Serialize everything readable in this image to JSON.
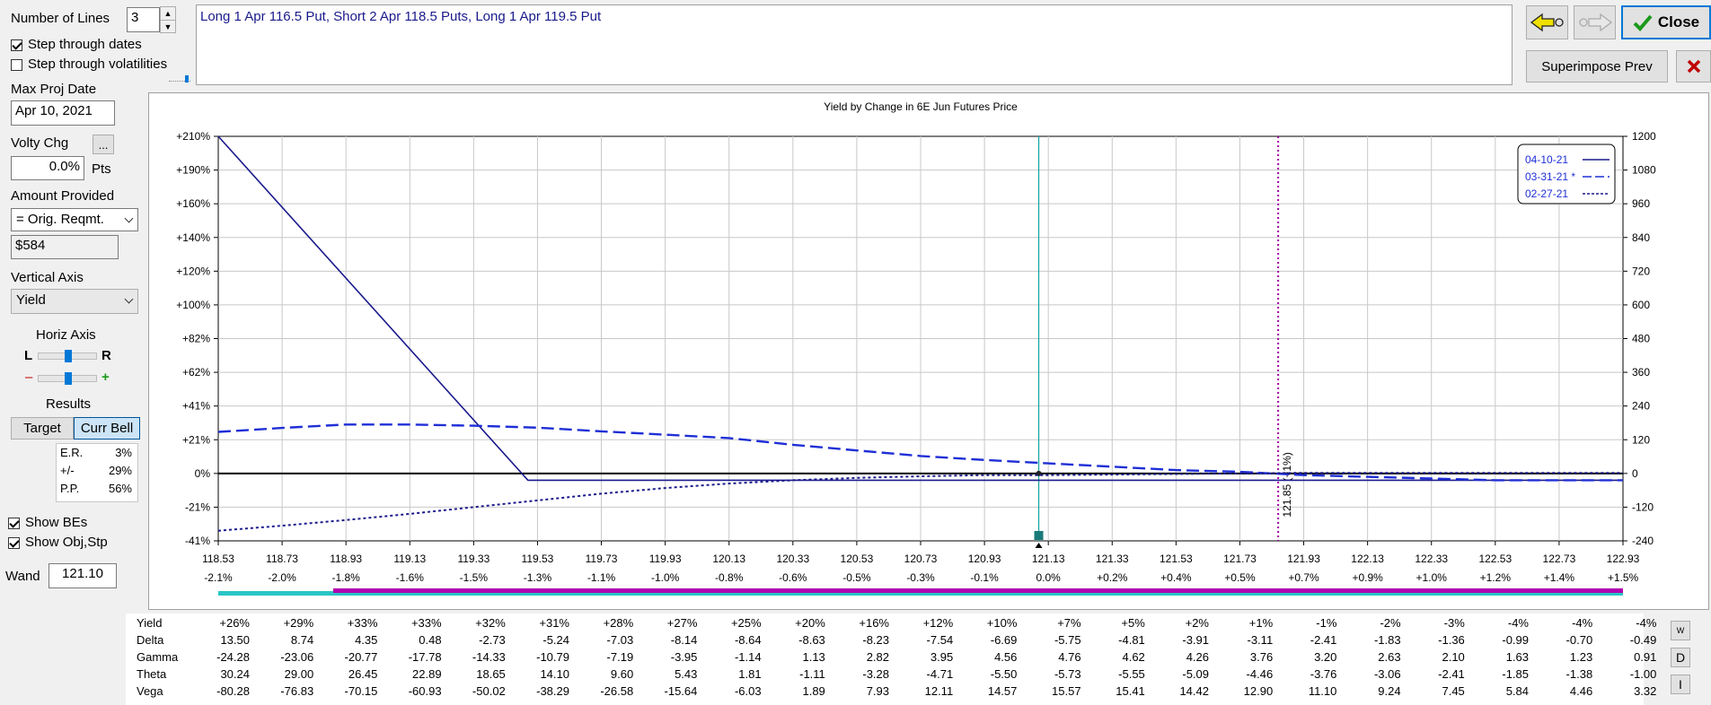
{
  "controls": {
    "number_of_lines_label": "Number of Lines",
    "number_of_lines_value": "3",
    "step_dates_label": "Step through dates",
    "step_dates_checked": true,
    "step_vols_label": "Step through volatilities",
    "step_vols_checked": false,
    "max_proj_date_label": "Max Proj Date",
    "max_proj_date_value": "Apr 10, 2021",
    "volty_chg_label": "Volty Chg",
    "volty_chg_btn": "...",
    "volty_chg_value": "0.0%",
    "volty_chg_unit": "Pts",
    "amount_provided_label": "Amount Provided",
    "amount_provided_option": "= Orig. Reqmt.",
    "amount_provided_value": "$584",
    "vertical_axis_label": "Vertical Axis",
    "vertical_axis_option": "Yield",
    "horiz_axis_label": "Horiz Axis",
    "horiz_l": "L",
    "horiz_r": "R",
    "horiz_minus": "–",
    "horiz_plus": "+",
    "results_label": "Results",
    "target_btn": "Target",
    "curr_bell_btn": "Curr Bell",
    "er_label": "E.R.",
    "er_value": "3%",
    "pm_label": "+/-",
    "pm_value": "29%",
    "pp_label": "P.P.",
    "pp_value": "56%",
    "show_bes_label": "Show BEs",
    "show_bes_checked": true,
    "show_obj_label": "Show Obj,Stp",
    "show_obj_checked": true,
    "wand_label": "Wand",
    "wand_value": "121.10"
  },
  "description": "Long 1 Apr 116.5 Put, Short 2 Apr 118.5 Puts, Long 1 Apr 119.5 Put",
  "toolbar": {
    "close_label": "Close",
    "superimpose_label": "Superimpose Prev"
  },
  "chart_data": {
    "type": "line",
    "title": "Yield by Change in 6E Jun Futures Price",
    "x_ticks": [
      "118.53",
      "118.73",
      "118.93",
      "119.13",
      "119.33",
      "119.53",
      "119.73",
      "119.93",
      "120.13",
      "120.33",
      "120.53",
      "120.73",
      "120.93",
      "121.13",
      "121.33",
      "121.53",
      "121.73",
      "121.93",
      "122.13",
      "122.33",
      "122.53",
      "122.73",
      "122.93"
    ],
    "x_pct_ticks": [
      "-2.1%",
      "-2.0%",
      "-1.8%",
      "-1.6%",
      "-1.5%",
      "-1.3%",
      "-1.1%",
      "-1.0%",
      "-0.8%",
      "-0.6%",
      "-0.5%",
      "-0.3%",
      "-0.1%",
      "0.0%",
      "+0.2%",
      "+0.4%",
      "+0.5%",
      "+0.7%",
      "+0.9%",
      "+1.0%",
      "+1.2%",
      "+1.4%",
      "+1.5%"
    ],
    "y_left_ticks": [
      "+210%",
      "+190%",
      "+160%",
      "+140%",
      "+120%",
      "+100%",
      "+82%",
      "+62%",
      "+41%",
      "+21%",
      "0%",
      "-21%",
      "-41%"
    ],
    "y_right_ticks": [
      "1200",
      "1080",
      "960",
      "840",
      "720",
      "600",
      "480",
      "360",
      "240",
      "120",
      "0",
      "-120",
      "-240"
    ],
    "ylim_right": [
      -240,
      1200
    ],
    "xlim": [
      118.53,
      122.93
    ],
    "current_price": 121.1,
    "marker_price": 121.85,
    "marker_label": "121.85 (+1%)",
    "legend": [
      "04-10-21",
      "03-31-21 *",
      "02-27-21"
    ],
    "series": [
      {
        "name": "04-10-21",
        "style": "solid",
        "color": "#1a1a8c",
        "x": [
          118.53,
          119.5,
          122.93
        ],
        "y": [
          1200,
          -24,
          -24
        ]
      },
      {
        "name": "03-31-21 *",
        "style": "dashed",
        "color": "#1f2fd6",
        "x": [
          118.53,
          118.73,
          118.93,
          119.13,
          119.33,
          119.53,
          119.73,
          119.93,
          120.13,
          120.33,
          120.53,
          120.73,
          120.93,
          121.13,
          121.33,
          121.53,
          121.73,
          121.93,
          122.13,
          122.33,
          122.53,
          122.73,
          122.93
        ],
        "y": [
          148,
          162,
          174,
          174,
          170,
          163,
          150,
          138,
          126,
          102,
          82,
          62,
          48,
          36,
          24,
          12,
          6,
          -6,
          -12,
          -18,
          -24,
          -24,
          -24
        ]
      },
      {
        "name": "02-27-21",
        "style": "dotted",
        "color": "#1a1a8c",
        "x": [
          118.53,
          118.73,
          118.93,
          119.13,
          119.33,
          119.53,
          119.73,
          119.93,
          120.13,
          120.33,
          120.53,
          120.73,
          120.93,
          121.13,
          121.33,
          121.53,
          121.73,
          121.93,
          122.13,
          122.33,
          122.53,
          122.73,
          122.93
        ],
        "y": [
          -204,
          -186,
          -166,
          -144,
          -120,
          -96,
          -72,
          -52,
          -36,
          -24,
          -16,
          -10,
          -6,
          -6,
          -4,
          -2,
          0,
          2,
          2,
          2,
          2,
          2,
          2
        ]
      }
    ]
  },
  "table": {
    "rows": [
      {
        "label": "Yield",
        "values": [
          "+26%",
          "+29%",
          "+33%",
          "+33%",
          "+32%",
          "+31%",
          "+28%",
          "+27%",
          "+25%",
          "+20%",
          "+16%",
          "+12%",
          "+10%",
          "+7%",
          "+5%",
          "+2%",
          "+1%",
          "-1%",
          "-2%",
          "-3%",
          "-4%",
          "-4%",
          "-4%"
        ]
      },
      {
        "label": "Delta",
        "values": [
          "13.50",
          "8.74",
          "4.35",
          "0.48",
          "-2.73",
          "-5.24",
          "-7.03",
          "-8.14",
          "-8.64",
          "-8.63",
          "-8.23",
          "-7.54",
          "-6.69",
          "-5.75",
          "-4.81",
          "-3.91",
          "-3.11",
          "-2.41",
          "-1.83",
          "-1.36",
          "-0.99",
          "-0.70",
          "-0.49"
        ]
      },
      {
        "label": "Gamma",
        "values": [
          "-24.28",
          "-23.06",
          "-20.77",
          "-17.78",
          "-14.33",
          "-10.79",
          "-7.19",
          "-3.95",
          "-1.14",
          "1.13",
          "2.82",
          "3.95",
          "4.56",
          "4.76",
          "4.62",
          "4.26",
          "3.76",
          "3.20",
          "2.63",
          "2.10",
          "1.63",
          "1.23",
          "0.91"
        ]
      },
      {
        "label": "Theta",
        "values": [
          "30.24",
          "29.00",
          "26.45",
          "22.89",
          "18.65",
          "14.10",
          "9.60",
          "5.43",
          "1.81",
          "-1.11",
          "-3.28",
          "-4.71",
          "-5.50",
          "-5.73",
          "-5.55",
          "-5.09",
          "-4.46",
          "-3.76",
          "-3.06",
          "-2.41",
          "-1.85",
          "-1.38",
          "-1.00"
        ]
      },
      {
        "label": "Vega",
        "values": [
          "-80.28",
          "-76.83",
          "-70.15",
          "-60.93",
          "-50.02",
          "-38.29",
          "-26.58",
          "-15.64",
          "-6.03",
          "1.89",
          "7.93",
          "12.11",
          "14.57",
          "15.57",
          "15.41",
          "14.42",
          "12.90",
          "11.10",
          "9.24",
          "7.45",
          "5.84",
          "4.46",
          "3.32"
        ]
      }
    ],
    "side_buttons": [
      "W",
      "D",
      "I"
    ]
  },
  "colors": {
    "accent": "#0078d7",
    "purple": "#a000a0",
    "teal": "#1aa6a6",
    "close_red": "#c00000"
  }
}
